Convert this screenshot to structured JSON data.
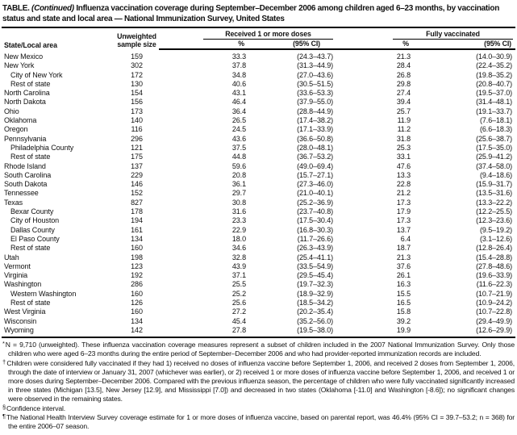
{
  "title": {
    "prefix": "TABLE. ",
    "continued": "(Continued)",
    "text": " Influenza vaccination coverage during September–December 2006 among children aged 6–23 months, by vaccination status and state and local area — National Immunization Survey, United States"
  },
  "table": {
    "col_state": "State/Local area",
    "col_sample_line1": "Unweighted",
    "col_sample_line2": "sample size",
    "group1": "Received 1 or more doses",
    "group2": "Fully vaccinated",
    "col_pct1": "%",
    "col_ci1": "(95% CI)",
    "col_pct2": "%",
    "col_ci2": "(95% CI)",
    "rows": [
      {
        "state": "New Mexico",
        "indent": false,
        "n": "159",
        "dose1_pct": "33.3",
        "dose1_ci": "(24.3–43.7)",
        "full_pct": "21.3",
        "full_ci": "(14.0–30.9)"
      },
      {
        "state": "New York",
        "indent": false,
        "n": "302",
        "dose1_pct": "37.8",
        "dose1_ci": "(31.3–44.9)",
        "full_pct": "28.4",
        "full_ci": "(22.4–35.2)"
      },
      {
        "state": "City of New York",
        "indent": true,
        "n": "172",
        "dose1_pct": "34.8",
        "dose1_ci": "(27.0–43.6)",
        "full_pct": "26.8",
        "full_ci": "(19.8–35.2)"
      },
      {
        "state": "Rest of state",
        "indent": true,
        "n": "130",
        "dose1_pct": "40.6",
        "dose1_ci": "(30.5–51.5)",
        "full_pct": "29.8",
        "full_ci": "(20.8–40.7)"
      },
      {
        "state": "North Carolina",
        "indent": false,
        "n": "154",
        "dose1_pct": "43.1",
        "dose1_ci": "(33.6–53.3)",
        "full_pct": "27.4",
        "full_ci": "(19.5–37.0)"
      },
      {
        "state": "North Dakota",
        "indent": false,
        "n": "156",
        "dose1_pct": "46.4",
        "dose1_ci": "(37.9–55.0)",
        "full_pct": "39.4",
        "full_ci": "(31.4–48.1)"
      },
      {
        "state": "Ohio",
        "indent": false,
        "n": "173",
        "dose1_pct": "36.4",
        "dose1_ci": "(28.8–44.9)",
        "full_pct": "25.7",
        "full_ci": "(19.1–33.7)"
      },
      {
        "state": "Oklahoma",
        "indent": false,
        "n": "140",
        "dose1_pct": "26.5",
        "dose1_ci": "(17.4–38.2)",
        "full_pct": "11.9",
        "full_ci": "(7.6–18.1)"
      },
      {
        "state": "Oregon",
        "indent": false,
        "n": "116",
        "dose1_pct": "24.5",
        "dose1_ci": "(17.1–33.9)",
        "full_pct": "11.2",
        "full_ci": "(6.6–18.3)"
      },
      {
        "state": "Pennsylvania",
        "indent": false,
        "n": "296",
        "dose1_pct": "43.6",
        "dose1_ci": "(36.6–50.8)",
        "full_pct": "31.8",
        "full_ci": "(25.6–38.7)"
      },
      {
        "state": "Philadelphia County",
        "indent": true,
        "n": "121",
        "dose1_pct": "37.5",
        "dose1_ci": "(28.0–48.1)",
        "full_pct": "25.3",
        "full_ci": "(17.5–35.0)"
      },
      {
        "state": "Rest of state",
        "indent": true,
        "n": "175",
        "dose1_pct": "44.8",
        "dose1_ci": "(36.7–53.2)",
        "full_pct": "33.1",
        "full_ci": "(25.9–41.2)"
      },
      {
        "state": "Rhode Island",
        "indent": false,
        "n": "137",
        "dose1_pct": "59.6",
        "dose1_ci": "(49.0–69.4)",
        "full_pct": "47.6",
        "full_ci": "(37.4–58.0)"
      },
      {
        "state": "South Carolina",
        "indent": false,
        "n": "229",
        "dose1_pct": "20.8",
        "dose1_ci": "(15.7–27.1)",
        "full_pct": "13.3",
        "full_ci": "(9.4–18.6)"
      },
      {
        "state": "South Dakota",
        "indent": false,
        "n": "146",
        "dose1_pct": "36.1",
        "dose1_ci": "(27.3–46.0)",
        "full_pct": "22.8",
        "full_ci": "(15.9–31.7)"
      },
      {
        "state": "Tennessee",
        "indent": false,
        "n": "152",
        "dose1_pct": "29.7",
        "dose1_ci": "(21.0–40.1)",
        "full_pct": "21.2",
        "full_ci": "(13.5–31.6)"
      },
      {
        "state": "Texas",
        "indent": false,
        "n": "827",
        "dose1_pct": "30.8",
        "dose1_ci": "(25.2–36.9)",
        "full_pct": "17.3",
        "full_ci": "(13.3–22.2)"
      },
      {
        "state": "Bexar County",
        "indent": true,
        "n": "178",
        "dose1_pct": "31.6",
        "dose1_ci": "(23.7–40.8)",
        "full_pct": "17.9",
        "full_ci": "(12.2–25.5)"
      },
      {
        "state": "City of Houston",
        "indent": true,
        "n": "194",
        "dose1_pct": "23.3",
        "dose1_ci": "(17.5–30.4)",
        "full_pct": "17.3",
        "full_ci": "(12.3–23.6)"
      },
      {
        "state": "Dallas County",
        "indent": true,
        "n": "161",
        "dose1_pct": "22.9",
        "dose1_ci": "(16.8–30.3)",
        "full_pct": "13.7",
        "full_ci": "(9.5–19.2)"
      },
      {
        "state": "El Paso County",
        "indent": true,
        "n": "134",
        "dose1_pct": "18.0",
        "dose1_ci": "(11.7–26.6)",
        "full_pct": "6.4",
        "full_ci": "(3.1–12.6)"
      },
      {
        "state": "Rest of state",
        "indent": true,
        "n": "160",
        "dose1_pct": "34.6",
        "dose1_ci": "(26.3–43.9)",
        "full_pct": "18.7",
        "full_ci": "(12.8–26.4)"
      },
      {
        "state": "Utah",
        "indent": false,
        "n": "198",
        "dose1_pct": "32.8",
        "dose1_ci": "(25.4–41.1)",
        "full_pct": "21.3",
        "full_ci": "(15.4–28.8)"
      },
      {
        "state": "Vermont",
        "indent": false,
        "n": "123",
        "dose1_pct": "43.9",
        "dose1_ci": "(33.5–54.9)",
        "full_pct": "37.6",
        "full_ci": "(27.8–48.6)"
      },
      {
        "state": "Virginia",
        "indent": false,
        "n": "192",
        "dose1_pct": "37.1",
        "dose1_ci": "(29.5–45.4)",
        "full_pct": "26.1",
        "full_ci": "(19.6–33.9)"
      },
      {
        "state": "Washington",
        "indent": false,
        "n": "286",
        "dose1_pct": "25.5",
        "dose1_ci": "(19.7–32.3)",
        "full_pct": "16.3",
        "full_ci": "(11.6–22.3)"
      },
      {
        "state": "Western Washington",
        "indent": true,
        "n": "160",
        "dose1_pct": "25.2",
        "dose1_ci": "(18.9–32.9)",
        "full_pct": "15.5",
        "full_ci": "(10.7–21.9)"
      },
      {
        "state": "Rest of state",
        "indent": true,
        "n": "126",
        "dose1_pct": "25.6",
        "dose1_ci": "(18.5–34.2)",
        "full_pct": "16.5",
        "full_ci": "(10.9–24.2)"
      },
      {
        "state": "West Virginia",
        "indent": false,
        "n": "160",
        "dose1_pct": "27.2",
        "dose1_ci": "(20.2–35.4)",
        "full_pct": "15.8",
        "full_ci": "(10.7–22.8)"
      },
      {
        "state": "Wisconsin",
        "indent": false,
        "n": "134",
        "dose1_pct": "45.4",
        "dose1_ci": "(35.2–56.0)",
        "full_pct": "39.2",
        "full_ci": "(29.4–49.9)"
      },
      {
        "state": "Wyoming",
        "indent": false,
        "n": "142",
        "dose1_pct": "27.8",
        "dose1_ci": "(19.5–38.0)",
        "full_pct": "19.9",
        "full_ci": "(12.6–29.9)"
      }
    ]
  },
  "footnotes": [
    {
      "symbol": "*",
      "text": "N = 9,710 (unweighted). These influenza vaccination coverage measures represent a subset of children included in the 2007 National Immunization Survey. Only those children who were aged 6–23 months during the entire period of September–December 2006 and who had provider-reported immunization records are included."
    },
    {
      "symbol": "†",
      "text": "Children were considered fully vaccinated if they had 1) received no doses of influenza vaccine before September 1, 2006, and received 2 doses from September 1, 2006, through the date of interview or January 31, 2007 (whichever was earlier), or 2) received 1 or more doses of influenza vaccine before September 1, 2006, and received 1 or more doses during September–December 2006. Compared with the previous influenza season, the percentage of children who were fully vaccinated significantly increased in three states (Michigan [13.5], New Jersey [12.9], and Mississippi [7.0]) and decreased in two states (Oklahoma [-11.0] and Washington [-8.6]); no significant changes were observed in the remaining states."
    },
    {
      "symbol": "§",
      "text": "Confidence interval."
    },
    {
      "symbol": "¶",
      "text": "The National Health Interview Survey coverage estimate for 1 or more doses of influenza vaccine, based on parental report, was 46.4% (95% CI = 39.7–53.2; n = 368) for the entire 2006–07 season."
    }
  ]
}
